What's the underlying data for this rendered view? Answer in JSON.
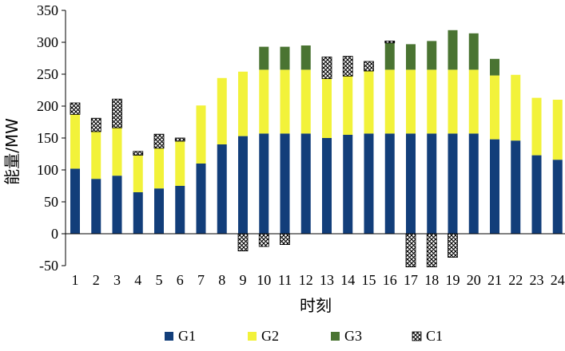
{
  "chart_data": {
    "type": "bar",
    "stacked": true,
    "title": "",
    "xlabel": "时刻",
    "ylabel": "能量/MW",
    "ylim": [
      -50,
      350
    ],
    "yticks": [
      -50,
      0,
      50,
      100,
      150,
      200,
      250,
      300,
      350
    ],
    "grid": false,
    "legend_position": "bottom",
    "categories": [
      "1",
      "2",
      "3",
      "4",
      "5",
      "6",
      "7",
      "8",
      "9",
      "10",
      "11",
      "12",
      "13",
      "14",
      "15",
      "16",
      "17",
      "18",
      "19",
      "20",
      "21",
      "22",
      "23",
      "24"
    ],
    "series": [
      {
        "name": "G1",
        "color": "#123e7a",
        "pattern": "solid",
        "values": [
          102,
          86,
          91,
          65,
          71,
          75,
          110,
          140,
          153,
          157,
          157,
          157,
          150,
          155,
          157,
          157,
          157,
          157,
          157,
          157,
          148,
          146,
          123,
          116
        ]
      },
      {
        "name": "G2",
        "color": "#f2f23a",
        "pattern": "solid",
        "values": [
          85,
          74,
          75,
          58,
          63,
          70,
          91,
          104,
          101,
          100,
          100,
          100,
          93,
          92,
          98,
          100,
          100,
          100,
          100,
          100,
          100,
          103,
          90,
          94
        ]
      },
      {
        "name": "G3",
        "color": "#4a7432",
        "pattern": "solid",
        "values": [
          0,
          0,
          0,
          0,
          0,
          0,
          0,
          0,
          0,
          36,
          36,
          38,
          0,
          0,
          0,
          42,
          40,
          45,
          62,
          57,
          26,
          0,
          0,
          0
        ]
      },
      {
        "name": "C1",
        "color": "#000000",
        "pattern": "crosshatch",
        "values": [
          18,
          21,
          45,
          6,
          22,
          5,
          0,
          0,
          -27,
          -20,
          -17,
          0,
          34,
          31,
          15,
          3,
          -52,
          -52,
          -37,
          0,
          0,
          0,
          0,
          0
        ]
      }
    ]
  }
}
